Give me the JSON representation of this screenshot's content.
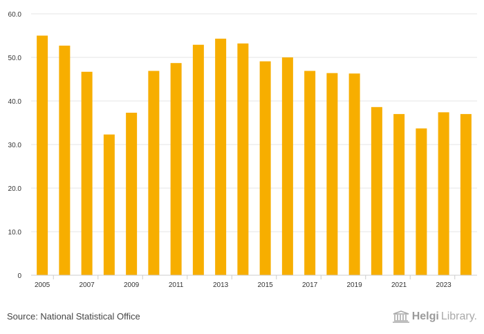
{
  "chart_data": {
    "type": "bar",
    "title": "",
    "xlabel": "",
    "ylabel": "",
    "categories": [
      "2005",
      "2006",
      "2007",
      "2008",
      "2009",
      "2010",
      "2011",
      "2012",
      "2013",
      "2014",
      "2015",
      "2016",
      "2017",
      "2018",
      "2019",
      "2020",
      "2021",
      "2022",
      "2023",
      "2024"
    ],
    "x_tick_labels": [
      "2005",
      "2007",
      "2009",
      "2011",
      "2013",
      "2015",
      "2017",
      "2019",
      "2021",
      "2023"
    ],
    "values": [
      55.0,
      52.7,
      46.7,
      32.3,
      37.3,
      46.9,
      48.7,
      52.9,
      54.3,
      53.2,
      49.1,
      50.0,
      46.9,
      46.4,
      46.3,
      38.6,
      37.0,
      33.7,
      37.4,
      37.0
    ],
    "ylim": [
      0,
      60
    ],
    "y_ticks": [
      "0",
      "10.0",
      "20.0",
      "30.0",
      "40.0",
      "50.0",
      "60.0"
    ],
    "grid": true,
    "bar_color": "#f7ae00"
  },
  "footer": {
    "source": "Source: National Statistical Office",
    "brand_strong": "Helgi",
    "brand_rest": "Library."
  }
}
